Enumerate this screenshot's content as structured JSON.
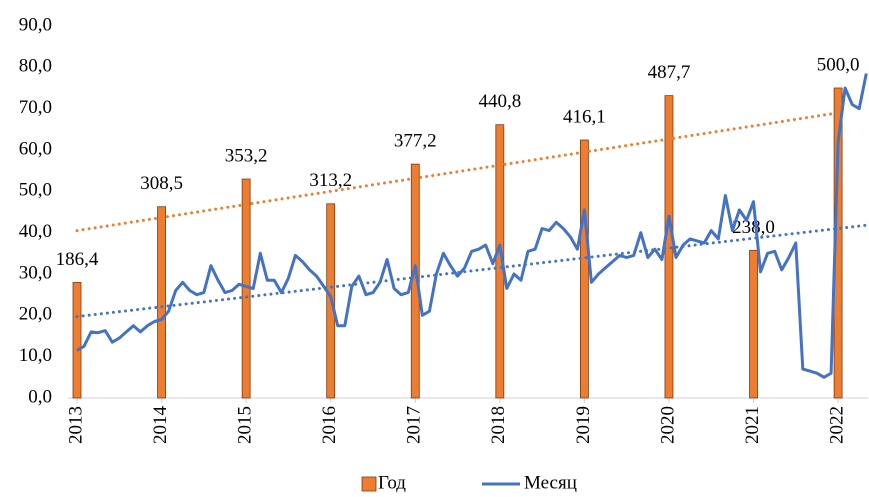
{
  "chart_data": {
    "type": "bar_line",
    "xlim": [
      2013,
      2022.33
    ],
    "xticks": [
      2013,
      2014,
      2015,
      2016,
      2017,
      2018,
      2019,
      2020,
      2021,
      2022
    ],
    "ylim": [
      0,
      90
    ],
    "yticks": [
      {
        "value": 0,
        "label": "0,0"
      },
      {
        "value": 10,
        "label": "10,0"
      },
      {
        "value": 20,
        "label": "20,0"
      },
      {
        "value": 30,
        "label": "30,0"
      },
      {
        "value": 40,
        "label": "40,0"
      },
      {
        "value": 50,
        "label": "50,0"
      },
      {
        "value": 60,
        "label": "60,0"
      },
      {
        "value": 70,
        "label": "70,0"
      },
      {
        "value": 80,
        "label": "80,0"
      },
      {
        "value": 90,
        "label": "90,0"
      }
    ],
    "y2lim": [
      0,
      600
    ],
    "series": [
      {
        "name": "Год",
        "type": "bar",
        "axis": "y2",
        "color": "#ed7d31",
        "x": [
          2013,
          2014,
          2015,
          2016,
          2017,
          2018,
          2019,
          2020,
          2021,
          2022
        ],
        "values": [
          186.4,
          308.5,
          353.2,
          313.2,
          377.2,
          440.8,
          416.1,
          487.7,
          238.0,
          500.0
        ],
        "value_labels": [
          "186,4",
          "308,5",
          "353,2",
          "313,2",
          "377,2",
          "440,8",
          "416,1",
          "487,7",
          "238,0",
          "500,0"
        ],
        "trend": {
          "x": [
            2013,
            2022
          ],
          "values": [
            40.5,
            69
          ]
        }
      },
      {
        "name": "Месяц",
        "type": "line",
        "color": "#4472c4",
        "x": [
          2013,
          2013.083,
          2013.167,
          2013.25,
          2013.333,
          2013.417,
          2013.5,
          2013.583,
          2013.667,
          2013.75,
          2013.833,
          2013.917,
          2014,
          2014.083,
          2014.167,
          2014.25,
          2014.333,
          2014.417,
          2014.5,
          2014.583,
          2014.667,
          2014.75,
          2014.833,
          2014.917,
          2015,
          2015.083,
          2015.167,
          2015.25,
          2015.333,
          2015.417,
          2015.5,
          2015.583,
          2015.667,
          2015.75,
          2015.833,
          2015.917,
          2016,
          2016.083,
          2016.167,
          2016.25,
          2016.333,
          2016.417,
          2016.5,
          2016.583,
          2016.667,
          2016.75,
          2016.833,
          2016.917,
          2017,
          2017.083,
          2017.167,
          2017.25,
          2017.333,
          2017.417,
          2017.5,
          2017.583,
          2017.667,
          2017.75,
          2017.833,
          2017.917,
          2018,
          2018.083,
          2018.167,
          2018.25,
          2018.333,
          2018.417,
          2018.5,
          2018.583,
          2018.667,
          2018.75,
          2018.833,
          2018.917,
          2019,
          2019.083,
          2019.167,
          2019.25,
          2019.333,
          2019.417,
          2019.5,
          2019.583,
          2019.667,
          2019.75,
          2019.833,
          2019.917,
          2020,
          2020.083,
          2020.167,
          2020.25,
          2020.333,
          2020.417,
          2020.5,
          2020.583,
          2020.667,
          2020.75,
          2020.833,
          2020.917,
          2021,
          2021.083,
          2021.167,
          2021.25,
          2021.333,
          2021.417,
          2021.5,
          2021.583,
          2021.667,
          2021.75,
          2021.833,
          2021.917,
          2022,
          2022.083,
          2022.167,
          2022.25,
          2022.333
        ],
        "values": [
          11.5,
          12.5,
          16,
          15.8,
          16.3,
          13.5,
          14.5,
          16,
          17.5,
          16,
          17.5,
          18.5,
          19,
          21,
          26,
          28,
          26,
          25,
          25.5,
          32,
          28.5,
          25.5,
          26,
          27.5,
          27,
          26.5,
          35,
          28.5,
          28.5,
          25.5,
          29,
          34.5,
          33,
          31,
          29.5,
          27,
          24.5,
          17.5,
          17.5,
          27,
          29.5,
          25,
          25.5,
          28,
          33.5,
          26.5,
          25,
          25.5,
          32,
          20,
          21,
          30,
          35,
          32,
          29.5,
          31.5,
          35.5,
          36,
          37,
          32.5,
          37,
          26.5,
          30,
          28.5,
          35.5,
          36,
          41,
          40.5,
          42.5,
          41,
          39,
          36,
          45.5,
          28,
          30,
          31.5,
          33,
          34.5,
          34,
          34.5,
          40,
          34,
          36,
          33.5,
          44,
          34,
          37,
          38.5,
          38,
          37.5,
          40.5,
          38.5,
          49,
          40.5,
          45.5,
          43,
          47.5,
          30.5,
          35,
          35.5,
          31,
          34,
          37.5,
          7,
          6.5,
          6,
          5,
          6,
          62,
          75,
          71,
          70,
          78.5
        ],
        "trend": {
          "x": [
            2013,
            2022.33
          ],
          "values": [
            19.7,
            41.8
          ]
        }
      }
    ]
  }
}
